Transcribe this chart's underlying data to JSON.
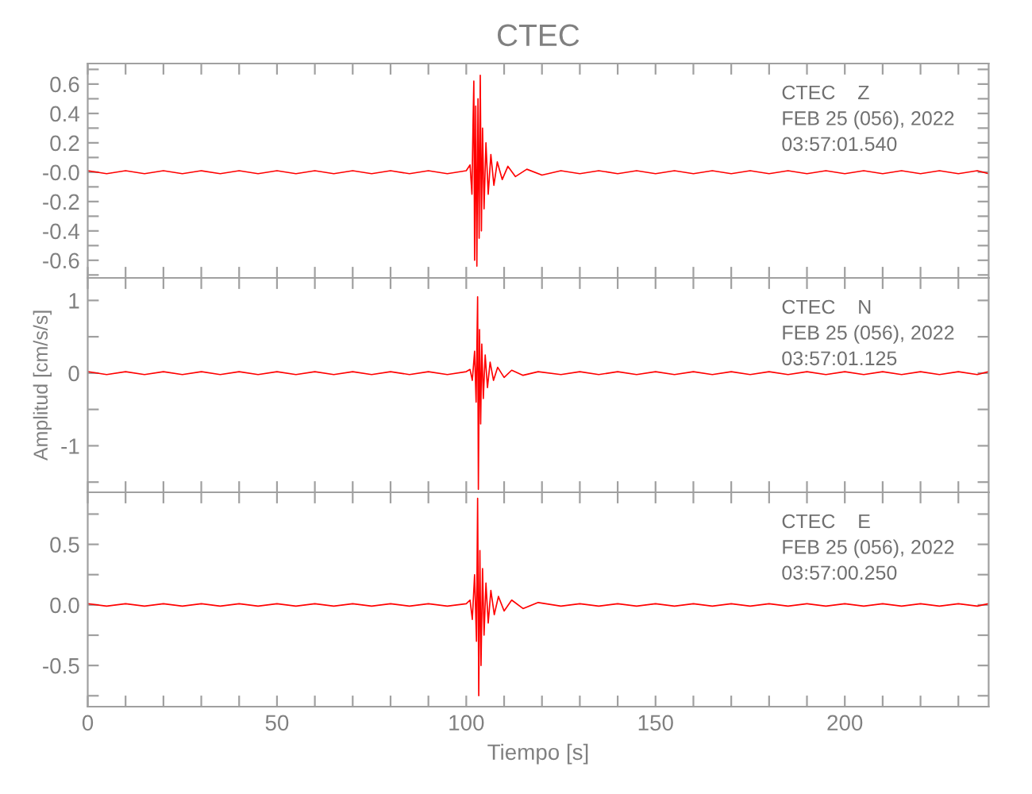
{
  "chart_data": [
    {
      "type": "line",
      "title": "CTEC",
      "annotations": [
        "CTEC    Z",
        "FEB 25 (056), 2022",
        "03:57:01.540"
      ],
      "tick_labels": "y",
      "grid": false,
      "legend": false,
      "xticks": [
        {
          "value": 0,
          "label": null
        },
        {
          "value": 10,
          "label": null
        },
        {
          "value": 20,
          "label": null
        },
        {
          "value": 30,
          "label": null
        },
        {
          "value": 40,
          "label": null
        },
        {
          "value": 50,
          "label": null
        },
        {
          "value": 60,
          "label": null
        },
        {
          "value": 70,
          "label": null
        },
        {
          "value": 80,
          "label": null
        },
        {
          "value": 90,
          "label": null
        },
        {
          "value": 100,
          "label": null
        },
        {
          "value": 110,
          "label": null
        },
        {
          "value": 120,
          "label": null
        },
        {
          "value": 130,
          "label": null
        },
        {
          "value": 140,
          "label": null
        },
        {
          "value": 150,
          "label": null
        },
        {
          "value": 160,
          "label": null
        },
        {
          "value": 170,
          "label": null
        },
        {
          "value": 180,
          "label": null
        },
        {
          "value": 190,
          "label": null
        },
        {
          "value": 200,
          "label": null
        },
        {
          "value": 210,
          "label": null
        },
        {
          "value": 220,
          "label": null
        },
        {
          "value": 230,
          "label": null
        }
      ],
      "series": [
        {
          "color": "#ff0000",
          "x": [
            0,
            5,
            10,
            15,
            20,
            25,
            30,
            35,
            40,
            45,
            50,
            55,
            60,
            65,
            70,
            75,
            80,
            85,
            90,
            95,
            100,
            101,
            101.5,
            101.8,
            102.0,
            102.2,
            102.5,
            102.8,
            103.1,
            103.4,
            103.7,
            104.0,
            104.3,
            104.7,
            105.2,
            105.8,
            106.5,
            107.3,
            108.2,
            109.5,
            111,
            113,
            116,
            120,
            125,
            130,
            135,
            140,
            145,
            150,
            155,
            160,
            165,
            170,
            175,
            180,
            185,
            190,
            195,
            200,
            205,
            210,
            215,
            220,
            225,
            230,
            235,
            238
          ],
          "values": [
            0.01,
            -0.01,
            0.01,
            -0.01,
            0.01,
            -0.01,
            0.01,
            -0.01,
            0.01,
            -0.01,
            0.01,
            -0.01,
            0.01,
            -0.01,
            0.01,
            -0.01,
            0.01,
            -0.01,
            0.01,
            -0.01,
            0.01,
            0.05,
            -0.15,
            0.35,
            0.62,
            -0.6,
            0.45,
            -0.64,
            0.5,
            -0.45,
            0.66,
            -0.4,
            0.3,
            -0.25,
            0.2,
            -0.15,
            0.12,
            -0.09,
            0.07,
            -0.05,
            0.04,
            -0.03,
            0.02,
            -0.02,
            0.01,
            -0.01,
            0.01,
            -0.01,
            0.01,
            -0.01,
            0.01,
            -0.01,
            0.01,
            -0.01,
            0.01,
            -0.01,
            0.01,
            -0.01,
            0.01,
            -0.01,
            0.01,
            -0.01,
            0.01,
            -0.01,
            0.01,
            -0.01,
            0.01,
            -0.01
          ]
        }
      ],
      "xlim": [
        0,
        238
      ],
      "ylim": [
        -0.72,
        0.74
      ],
      "yticks": [
        {
          "value": -0.7,
          "label": null
        },
        {
          "value": -0.6,
          "label": "-0.6"
        },
        {
          "value": -0.5,
          "label": null
        },
        {
          "value": -0.4,
          "label": "-0.4"
        },
        {
          "value": -0.3,
          "label": null
        },
        {
          "value": -0.2,
          "label": "-0.2"
        },
        {
          "value": -0.1,
          "label": null
        },
        {
          "value": 0,
          "label": "-0.0"
        },
        {
          "value": 0.1,
          "label": null
        },
        {
          "value": 0.2,
          "label": "0.2"
        },
        {
          "value": 0.3,
          "label": null
        },
        {
          "value": 0.4,
          "label": "0.4"
        },
        {
          "value": 0.5,
          "label": null
        },
        {
          "value": 0.6,
          "label": "0.6"
        },
        {
          "value": 0.7,
          "label": null
        }
      ]
    },
    {
      "type": "line",
      "ylabel": "Amplitud [cm/s/s]",
      "annotations": [
        "CTEC    N",
        "FEB 25 (056), 2022",
        "03:57:01.125"
      ],
      "tick_labels": "y",
      "grid": false,
      "legend": false,
      "xticks": [
        {
          "value": 0,
          "label": null
        },
        {
          "value": 10,
          "label": null
        },
        {
          "value": 20,
          "label": null
        },
        {
          "value": 30,
          "label": null
        },
        {
          "value": 40,
          "label": null
        },
        {
          "value": 50,
          "label": null
        },
        {
          "value": 60,
          "label": null
        },
        {
          "value": 70,
          "label": null
        },
        {
          "value": 80,
          "label": null
        },
        {
          "value": 90,
          "label": null
        },
        {
          "value": 100,
          "label": null
        },
        {
          "value": 110,
          "label": null
        },
        {
          "value": 120,
          "label": null
        },
        {
          "value": 130,
          "label": null
        },
        {
          "value": 140,
          "label": null
        },
        {
          "value": 150,
          "label": null
        },
        {
          "value": 160,
          "label": null
        },
        {
          "value": 170,
          "label": null
        },
        {
          "value": 180,
          "label": null
        },
        {
          "value": 190,
          "label": null
        },
        {
          "value": 200,
          "label": null
        },
        {
          "value": 210,
          "label": null
        },
        {
          "value": 220,
          "label": null
        },
        {
          "value": 230,
          "label": null
        }
      ],
      "series": [
        {
          "color": "#ff0000",
          "x": [
            0,
            5,
            10,
            15,
            20,
            25,
            30,
            35,
            40,
            45,
            50,
            55,
            60,
            65,
            70,
            75,
            80,
            85,
            90,
            95,
            100,
            101,
            101.6,
            102.2,
            102.6,
            103.0,
            103.2,
            103.5,
            103.8,
            104.1,
            104.5,
            105,
            105.6,
            106.3,
            107.2,
            108.3,
            110,
            112,
            115,
            119,
            125,
            130,
            135,
            140,
            145,
            150,
            155,
            160,
            165,
            170,
            175,
            180,
            185,
            190,
            195,
            200,
            205,
            210,
            215,
            220,
            225,
            230,
            235,
            238
          ],
          "values": [
            0.02,
            -0.02,
            0.02,
            -0.02,
            0.02,
            -0.02,
            0.02,
            -0.02,
            0.02,
            -0.02,
            0.02,
            -0.02,
            0.02,
            -0.02,
            0.02,
            -0.02,
            0.02,
            -0.02,
            0.02,
            -0.02,
            0.02,
            0.05,
            -0.1,
            0.3,
            -0.4,
            1.05,
            -1.6,
            0.6,
            -0.7,
            0.4,
            -0.35,
            0.25,
            -0.2,
            0.15,
            -0.1,
            0.08,
            -0.06,
            0.04,
            -0.03,
            0.02,
            -0.02,
            0.02,
            -0.02,
            0.02,
            -0.02,
            0.02,
            -0.02,
            0.02,
            -0.02,
            0.02,
            -0.02,
            0.02,
            -0.02,
            0.02,
            -0.02,
            0.02,
            -0.02,
            0.02,
            -0.02,
            0.02,
            -0.02,
            0.02,
            -0.02,
            0.02
          ]
        }
      ],
      "xlim": [
        0,
        238
      ],
      "ylim": [
        -1.64,
        1.31
      ],
      "yticks": [
        {
          "value": -1.5,
          "label": null
        },
        {
          "value": -1,
          "label": "-1"
        },
        {
          "value": -0.5,
          "label": null
        },
        {
          "value": 0,
          "label": "0"
        },
        {
          "value": 0.5,
          "label": null
        },
        {
          "value": 1,
          "label": "1"
        }
      ]
    },
    {
      "type": "line",
      "xlabel": "Tiempo [s]",
      "annotations": [
        "CTEC    E",
        "FEB 25 (056), 2022",
        "03:57:00.250"
      ],
      "grid": false,
      "legend": false,
      "series": [
        {
          "color": "#ff0000",
          "x": [
            0,
            5,
            10,
            15,
            20,
            25,
            30,
            35,
            40,
            45,
            50,
            55,
            60,
            65,
            70,
            75,
            80,
            85,
            90,
            95,
            100,
            101,
            101.6,
            102.2,
            102.7,
            103.0,
            103.3,
            103.6,
            103.9,
            104.3,
            104.7,
            105.2,
            105.8,
            106.5,
            107.4,
            108.5,
            110,
            112,
            115,
            119,
            125,
            130,
            135,
            140,
            145,
            150,
            155,
            160,
            165,
            170,
            175,
            180,
            185,
            190,
            195,
            200,
            205,
            210,
            215,
            220,
            225,
            230,
            235,
            238
          ],
          "values": [
            0.01,
            -0.01,
            0.01,
            -0.01,
            0.01,
            -0.01,
            0.01,
            -0.01,
            0.01,
            -0.01,
            0.01,
            -0.01,
            0.01,
            -0.01,
            0.01,
            -0.01,
            0.01,
            -0.01,
            0.01,
            -0.01,
            0.01,
            0.04,
            -0.12,
            0.25,
            -0.3,
            0.88,
            -0.75,
            0.45,
            -0.5,
            0.3,
            -0.25,
            0.18,
            -0.15,
            0.12,
            -0.08,
            0.07,
            -0.05,
            0.04,
            -0.03,
            0.02,
            -0.01,
            0.01,
            -0.01,
            0.01,
            -0.01,
            0.01,
            -0.01,
            0.01,
            -0.01,
            0.01,
            -0.01,
            0.01,
            -0.01,
            0.01,
            -0.01,
            0.01,
            -0.01,
            0.01,
            -0.01,
            0.01,
            -0.01,
            0.01,
            -0.01,
            0.01
          ]
        }
      ],
      "xlim": [
        0,
        238
      ],
      "xticks": [
        {
          "value": 0,
          "label": "0"
        },
        {
          "value": 10,
          "label": null
        },
        {
          "value": 20,
          "label": null
        },
        {
          "value": 30,
          "label": null
        },
        {
          "value": 40,
          "label": null
        },
        {
          "value": 50,
          "label": "50"
        },
        {
          "value": 60,
          "label": null
        },
        {
          "value": 70,
          "label": null
        },
        {
          "value": 80,
          "label": null
        },
        {
          "value": 90,
          "label": null
        },
        {
          "value": 100,
          "label": "100"
        },
        {
          "value": 110,
          "label": null
        },
        {
          "value": 120,
          "label": null
        },
        {
          "value": 130,
          "label": null
        },
        {
          "value": 140,
          "label": null
        },
        {
          "value": 150,
          "label": "150"
        },
        {
          "value": 160,
          "label": null
        },
        {
          "value": 170,
          "label": null
        },
        {
          "value": 180,
          "label": null
        },
        {
          "value": 190,
          "label": null
        },
        {
          "value": 200,
          "label": "200"
        },
        {
          "value": 210,
          "label": null
        },
        {
          "value": 220,
          "label": null
        },
        {
          "value": 230,
          "label": null
        }
      ],
      "ylim": [
        -0.84,
        0.93
      ],
      "yticks": [
        {
          "value": -0.75,
          "label": null
        },
        {
          "value": -0.5,
          "label": "-0.5"
        },
        {
          "value": -0.25,
          "label": null
        },
        {
          "value": 0,
          "label": "0.0"
        },
        {
          "value": 0.25,
          "label": null
        },
        {
          "value": 0.5,
          "label": "0.5"
        },
        {
          "value": 0.75,
          "label": null
        }
      ]
    }
  ]
}
